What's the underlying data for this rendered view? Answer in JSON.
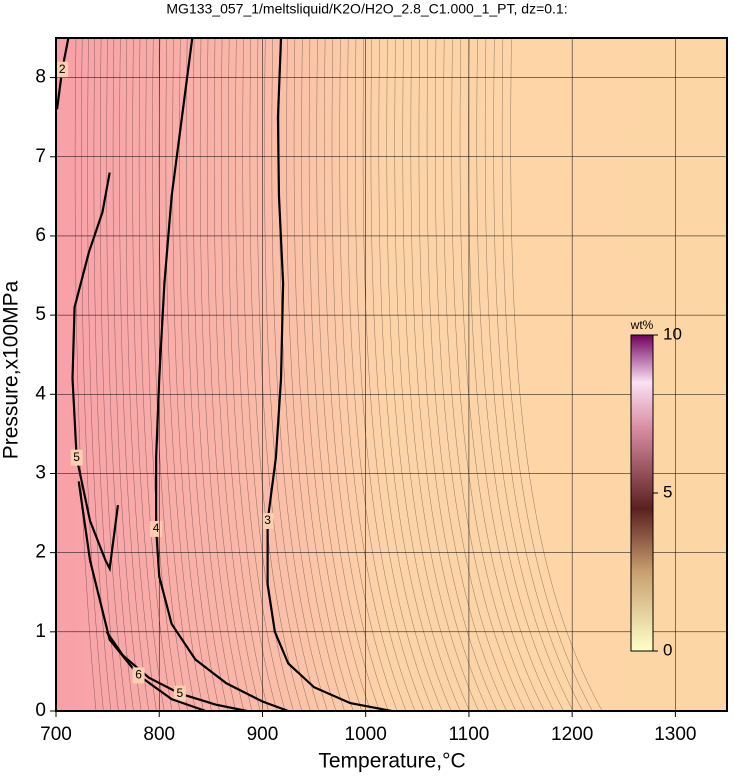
{
  "chart_data": {
    "type": "contour",
    "title": "MG133_057_1/meltsliquid/K2O/H2O_2.8_C1.000_1_PT, dz=0.1:",
    "xlabel": "Temperature,°C",
    "ylabel": "Pressure,x100MPa",
    "xlim": [
      700,
      1350
    ],
    "ylim": [
      0,
      8.5
    ],
    "xticks": [
      700,
      800,
      900,
      1000,
      1100,
      1200,
      1300
    ],
    "yticks": [
      0,
      1,
      2,
      3,
      4,
      5,
      6,
      7,
      8
    ],
    "grid": true,
    "contours": [
      {
        "level": 3,
        "x": [
          918,
          915,
          916,
          920,
          918,
          913,
          905,
          905,
          912,
          925,
          950,
          985,
          1025
        ],
        "y": [
          8.5,
          7.5,
          6.5,
          5.4,
          4.2,
          3.2,
          2.4,
          1.6,
          1.0,
          0.6,
          0.3,
          0.1,
          0
        ]
      },
      {
        "level": 4,
        "x": [
          832,
          822,
          812,
          805,
          800,
          797,
          797,
          800,
          812,
          835,
          865,
          900,
          925
        ],
        "y": [
          8.5,
          7.5,
          6.5,
          5.4,
          4.2,
          3.2,
          2.3,
          1.7,
          1.1,
          0.65,
          0.35,
          0.12,
          0
        ]
      },
      {
        "level": 5,
        "x": [
          752,
          745,
          732,
          718,
          716,
          720,
          733,
          748,
          752,
          760
        ],
        "y": [
          6.8,
          6.3,
          5.8,
          5.1,
          4.2,
          3.2,
          2.4,
          1.9,
          1.8,
          2.6
        ]
      },
      {
        "level": 5,
        "x": [
          749,
          765,
          790,
          820,
          855,
          885
        ],
        "y": [
          1.0,
          0.7,
          0.42,
          0.22,
          0.08,
          0
        ]
      },
      {
        "level": 6,
        "x": [
          722,
          733,
          752,
          780,
          812,
          845
        ],
        "y": [
          2.9,
          1.9,
          0.9,
          0.45,
          0.15,
          0
        ]
      },
      {
        "level": 2,
        "x": [
          712,
          706,
          701
        ],
        "y": [
          8.5,
          8.1,
          7.6
        ]
      }
    ],
    "colorbar": {
      "label": "wt%",
      "lim": [
        0,
        10
      ],
      "ticks": [
        0,
        5,
        10
      ]
    }
  }
}
